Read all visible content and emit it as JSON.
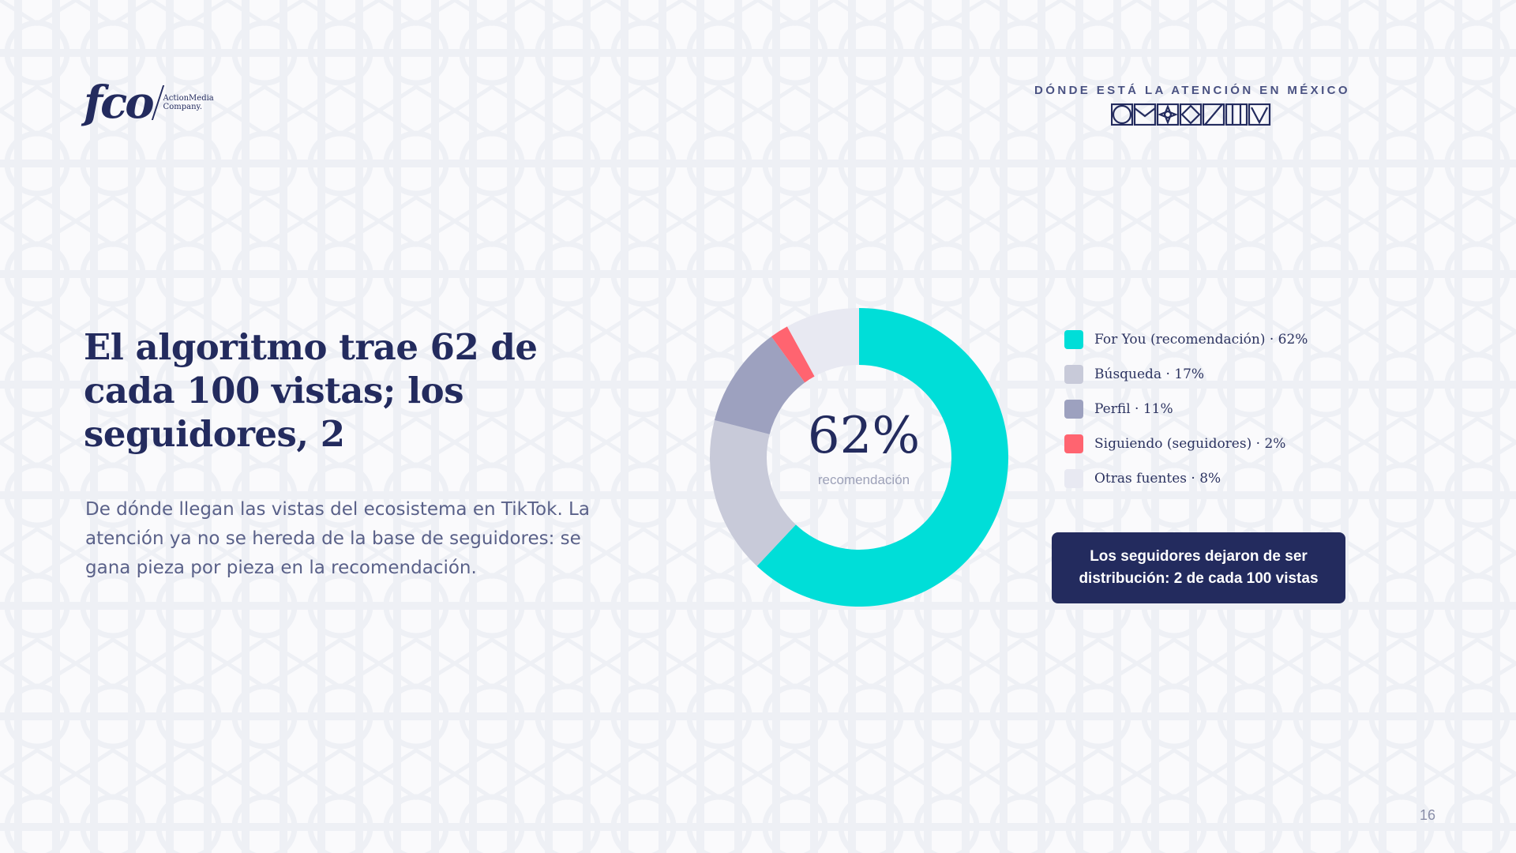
{
  "logo": {
    "mark": "fco",
    "tagline_1": "ActionMedia",
    "tagline_2": "Company."
  },
  "section": {
    "label": "DÓNDE ESTÁ LA ATENCIÓN EN MÉXICO"
  },
  "title": "El algoritmo trae 62 de cada 100 vistas; los seguidores, 2",
  "body": "De dónde llegan las vistas del ecosistema en TikTok. La atención ya no se hereda de la base de seguidores: se gana pieza por pieza en la recomendación.",
  "chart_data": {
    "type": "pie",
    "variant": "donut",
    "unit": "%",
    "slices": [
      {
        "label": "For You (recomendación)",
        "value": 62,
        "color": "#00ded8"
      },
      {
        "label": "Búsqueda",
        "value": 17,
        "color": "#c8cad9"
      },
      {
        "label": "Perfil",
        "value": 11,
        "color": "#9da1bf"
      },
      {
        "label": "Siguiendo (seguidores)",
        "value": 2,
        "color": "#ff6470"
      },
      {
        "label": "Otras fuentes",
        "value": 8,
        "color": "#e8e9f2"
      }
    ],
    "center_value": "62%",
    "center_label": "recomendación",
    "legend": [
      "For You (recomendación) · 62%",
      "Búsqueda · 17%",
      "Perfil · 11%",
      "Siguiendo (seguidores) · 2%",
      "Otras fuentes · 8%"
    ],
    "legend_position": "right"
  },
  "callout": "Los seguidores dejaron de ser distribución: 2 de cada 100 vistas",
  "page_number": "16",
  "colors": {
    "navy": "#232b5e",
    "teal": "#00ded8",
    "coral": "#ff6470"
  },
  "icons": [
    "circle-glyph",
    "envelope-glyph",
    "star-glyph",
    "diamond-glyph",
    "slash-glyph",
    "bars-glyph",
    "chevron-glyph"
  ]
}
